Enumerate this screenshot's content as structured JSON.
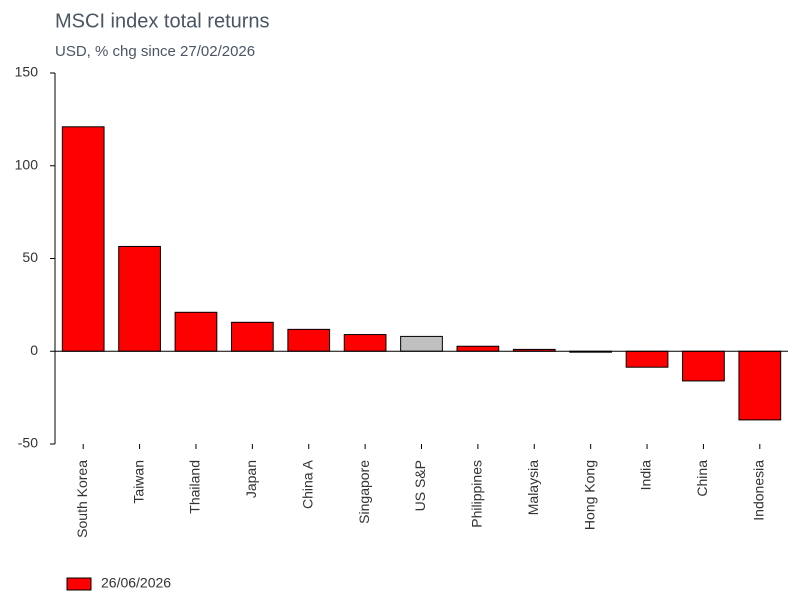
{
  "chart_data": {
    "type": "bar",
    "title": "MSCI index total returns",
    "subtitle": "USD, % chg since 27/02/2026",
    "categories": [
      "South Korea",
      "Taiwan",
      "Thailand",
      "Japan",
      "China A",
      "Singapore",
      "US S&P",
      "Philippines",
      "Malaysia",
      "Hong Kong",
      "India",
      "China",
      "Indonesia"
    ],
    "series": [
      {
        "name": "26/06/2026",
        "color": "#ff0000",
        "values": [
          121,
          56.5,
          21,
          15.6,
          11.8,
          9,
          8,
          2.7,
          1,
          -0.5,
          -8.6,
          -16,
          -37
        ]
      }
    ],
    "point_colors": [
      "#ff0000",
      "#ff0000",
      "#ff0000",
      "#ff0000",
      "#ff0000",
      "#ff0000",
      "#c0c0c0",
      "#ff0000",
      "#ff0000",
      "#ff0000",
      "#ff0000",
      "#ff0000",
      "#ff0000"
    ],
    "ylim": [
      -50,
      150
    ],
    "yticks": [
      -50,
      0,
      50,
      100,
      150
    ],
    "grid": false,
    "legend": "bottom-left"
  }
}
